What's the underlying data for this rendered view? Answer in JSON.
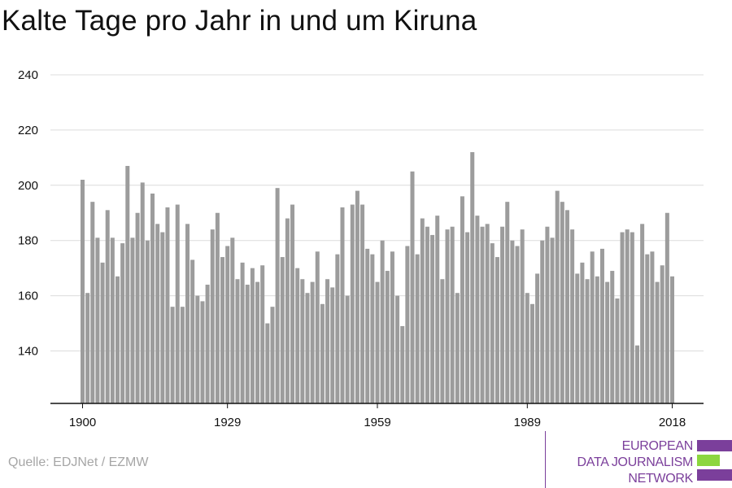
{
  "header": {
    "title": "Kalte Tage pro Jahr in und um Kiruna"
  },
  "footer": {
    "source": "Quelle: EDJNet / EZMW"
  },
  "logo": {
    "lines": [
      "EUROPEAN",
      "DATA JOURNALISM",
      "NETWORK"
    ],
    "colors": {
      "text": "#7b3f9b",
      "bar_purple": "#7b3f9b",
      "bar_green": "#8cd63f"
    }
  },
  "chart_data": {
    "type": "bar",
    "title": "Kalte Tage pro Jahr in und um Kiruna",
    "xlabel": "",
    "ylabel": "",
    "x_start": 1900,
    "x_end": 2018,
    "x_ticks": [
      1900,
      1929,
      1959,
      1989,
      2018
    ],
    "y_ticks": [
      140,
      160,
      180,
      200,
      220,
      240
    ],
    "ylim": [
      121,
      240
    ],
    "grid": true,
    "bar_color": "#9c9c9c",
    "values": [
      202,
      161,
      194,
      181,
      172,
      191,
      181,
      167,
      179,
      207,
      181,
      190,
      201,
      180,
      197,
      186,
      183,
      192,
      156,
      193,
      156,
      186,
      173,
      160,
      158,
      164,
      184,
      190,
      174,
      178,
      181,
      166,
      172,
      164,
      170,
      165,
      171,
      150,
      156,
      199,
      174,
      188,
      193,
      170,
      166,
      161,
      165,
      176,
      157,
      166,
      163,
      175,
      192,
      160,
      193,
      198,
      193,
      177,
      175,
      165,
      180,
      169,
      176,
      160,
      149,
      178,
      205,
      175,
      188,
      185,
      182,
      189,
      166,
      184,
      185,
      161,
      196,
      183,
      212,
      189,
      185,
      186,
      179,
      174,
      185,
      194,
      180,
      178,
      184,
      161,
      157,
      168,
      180,
      185,
      181,
      198,
      194,
      191,
      184,
      168,
      172,
      166,
      176,
      167,
      177,
      165,
      169,
      159,
      183,
      184,
      183,
      142,
      186,
      175,
      176,
      165,
      171,
      190,
      167
    ]
  }
}
